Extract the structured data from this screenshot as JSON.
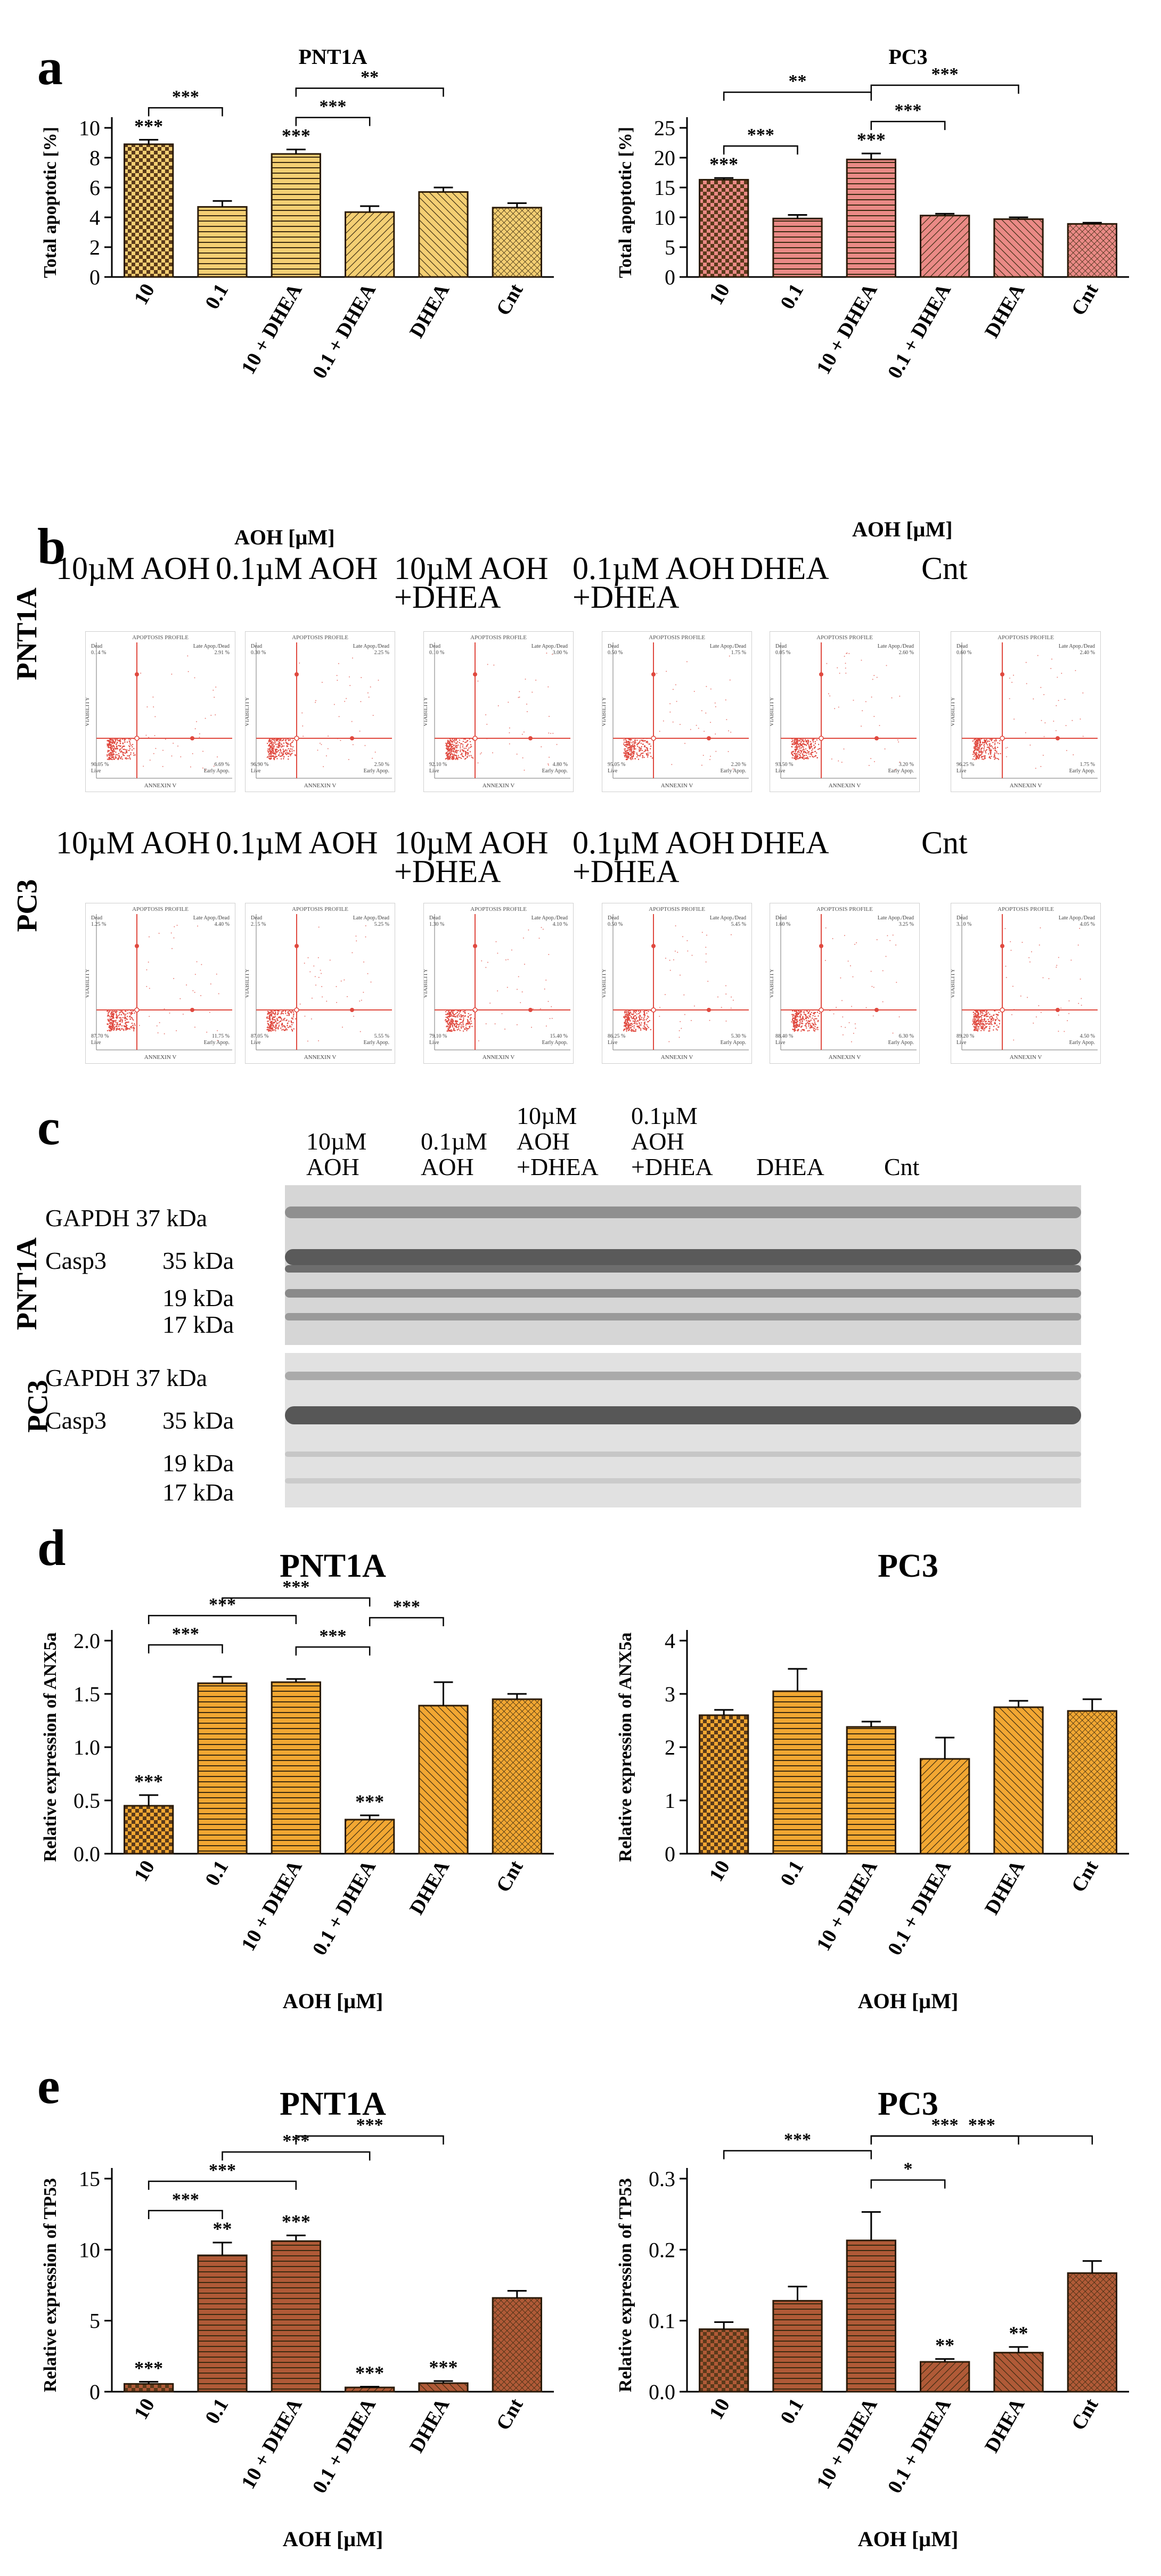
{
  "panel_letters": {
    "a": "a",
    "b": "b",
    "c": "c",
    "d": "d",
    "e": "e"
  },
  "colors": {
    "gold": "#f4cf73",
    "gold_dark": "#d9b24a",
    "salmon": "#ea8a86",
    "orange": "#f2a732",
    "brown": "#b05a37",
    "flow_red": "#e0493f"
  },
  "panel_b": {
    "left_header": "AOH [µM]",
    "right_header": "AOH [µM]",
    "row_labels": [
      "PNT1A",
      "PC3"
    ],
    "col_labels": [
      "10µM AOH",
      "0.1µM AOH",
      "10µM AOH\n+DHEA",
      "0.1µM AOH\n+DHEA",
      "DHEA",
      "Cnt"
    ],
    "profile_title": "APOPTOSIS PROFILE",
    "x_axis": "ANNEXIN V",
    "y_axis": "VIABILITY",
    "quadrant_names": {
      "dead": "Dead",
      "late": "Late Apop./Dead",
      "live": "Live",
      "early": "Early Apop."
    },
    "pnt1a": [
      {
        "dead": "0.14 %",
        "late": "2.91 %",
        "live": "90.05 %",
        "early": "6.69 %"
      },
      {
        "dead": "0.30 %",
        "late": "2.25 %",
        "live": "96.90 %",
        "early": "2.50 %"
      },
      {
        "dead": "0.10 %",
        "late": "3.00 %",
        "live": "92.10 %",
        "early": "4.80 %"
      },
      {
        "dead": "0.50 %",
        "late": "1.75 %",
        "live": "95.05 %",
        "early": "2.20 %"
      },
      {
        "dead": "0.05 %",
        "late": "2.60 %",
        "live": "93.50 %",
        "early": "3.20 %"
      },
      {
        "dead": "0.60 %",
        "late": "2.40 %",
        "live": "96.25 %",
        "early": "1.75 %"
      }
    ],
    "pc3": [
      {
        "dead": "1.25 %",
        "late": "4.40 %",
        "live": "87.70 %",
        "early": "11.75 %"
      },
      {
        "dead": "2.15 %",
        "late": "5.25 %",
        "live": "87.05 %",
        "early": "5.55 %"
      },
      {
        "dead": "1.30 %",
        "late": "4.10 %",
        "live": "79.10 %",
        "early": "15.40 %"
      },
      {
        "dead": "0.50 %",
        "late": "5.45 %",
        "live": "86.25 %",
        "early": "5.30 %"
      },
      {
        "dead": "1.60 %",
        "late": "3.25 %",
        "live": "88.40 %",
        "early": "6.30 %"
      },
      {
        "dead": "3.10 %",
        "late": "4.05 %",
        "live": "89.20 %",
        "early": "4.50 %"
      }
    ]
  },
  "panel_c": {
    "col_labels": [
      "10µM\nAOH",
      "0.1µM\nAOH",
      "10µM\nAOH\n+DHEA",
      "0.1µM\nAOH\n+DHEA",
      "DHEA",
      "Cnt"
    ],
    "row_labels": [
      "PNT1A",
      "PC3"
    ],
    "band_labels": {
      "gapdh": "GAPDH 37 kDa",
      "casp3": "Casp3",
      "casp3_kda": "35 kDa",
      "k19": "19 kDa",
      "k17": "17 kDa"
    }
  },
  "chart_data": [
    {
      "id": "a-pnt1a",
      "panel": "a",
      "type": "bar",
      "title": "PNT1A",
      "categories": [
        "10",
        "0.1",
        "10 + DHEA",
        "0.1 + DHEA",
        "DHEA",
        "Cnt"
      ],
      "values": [
        8.9,
        4.7,
        8.25,
        4.35,
        5.7,
        4.65
      ],
      "errors": [
        0.3,
        0.4,
        0.3,
        0.4,
        0.3,
        0.3
      ],
      "star_labels": [
        "***",
        "",
        "***",
        "",
        "",
        ""
      ],
      "ylabel": "Total apoptotic [%]",
      "xlabel": "",
      "ylim": [
        0,
        10
      ],
      "yticks": [
        0,
        2,
        4,
        6,
        8,
        10
      ],
      "brackets": [
        {
          "from": 0,
          "to": 1,
          "label": "***"
        },
        {
          "from": 2,
          "to": 3,
          "label": "***"
        },
        {
          "from": 2,
          "to": 4,
          "label": "**"
        }
      ],
      "palette": "gold"
    },
    {
      "id": "a-pc3",
      "panel": "a",
      "type": "bar",
      "title": "PC3",
      "categories": [
        "10",
        "0.1",
        "10 + DHEA",
        "0.1 + DHEA",
        "DHEA",
        "Cnt"
      ],
      "values": [
        16.3,
        9.8,
        19.7,
        10.3,
        9.7,
        8.9
      ],
      "errors": [
        0.3,
        0.6,
        1.0,
        0.3,
        0.3,
        0.2
      ],
      "star_labels": [
        "***",
        "",
        "***",
        "",
        "",
        ""
      ],
      "ylabel": "Total apoptotic [%]",
      "xlabel": "",
      "ylim": [
        0,
        25
      ],
      "yticks": [
        0,
        5,
        10,
        15,
        20,
        25
      ],
      "brackets": [
        {
          "from": 0,
          "to": 1,
          "label": "***"
        },
        {
          "from": 0,
          "to": 2,
          "label": "**"
        },
        {
          "from": 2,
          "to": 3,
          "label": "***"
        },
        {
          "from": 2,
          "to": 4,
          "label": "***"
        }
      ],
      "palette": "salmon"
    },
    {
      "id": "d-pnt1a",
      "panel": "d",
      "type": "bar",
      "title": "PNT1A",
      "categories": [
        "10",
        "0.1",
        "10 + DHEA",
        "0.1 + DHEA",
        "DHEA",
        "Cnt"
      ],
      "values": [
        0.45,
        1.6,
        1.61,
        0.32,
        1.39,
        1.45
      ],
      "errors": [
        0.1,
        0.06,
        0.03,
        0.04,
        0.22,
        0.05
      ],
      "star_labels": [
        "***",
        "",
        "",
        "***",
        "",
        ""
      ],
      "ylabel": "Relative expression of ANX5a",
      "xlabel": "AOH [µM]",
      "ylim": [
        0,
        2.0
      ],
      "yticks": [
        0.0,
        0.5,
        1.0,
        1.5,
        2.0
      ],
      "brackets": [
        {
          "from": 0,
          "to": 1,
          "label": "***"
        },
        {
          "from": 0,
          "to": 2,
          "label": "***"
        },
        {
          "from": 1,
          "to": 3,
          "label": "***"
        },
        {
          "from": 2,
          "to": 3,
          "label": "***"
        },
        {
          "from": 3,
          "to": 4,
          "label": "***"
        }
      ],
      "palette": "orange"
    },
    {
      "id": "d-pc3",
      "panel": "d",
      "type": "bar",
      "title": "PC3",
      "categories": [
        "10",
        "0.1",
        "10 + DHEA",
        "0.1 + DHEA",
        "DHEA",
        "Cnt"
      ],
      "values": [
        2.6,
        3.05,
        2.38,
        1.78,
        2.75,
        2.68
      ],
      "errors": [
        0.1,
        0.42,
        0.1,
        0.4,
        0.12,
        0.22
      ],
      "star_labels": [
        "",
        "",
        "",
        "",
        "",
        ""
      ],
      "ylabel": "Relative expression of ANX5a",
      "xlabel": "AOH [µM]",
      "ylim": [
        0,
        4
      ],
      "yticks": [
        0,
        1,
        2,
        3,
        4
      ],
      "brackets": [],
      "palette": "orange"
    },
    {
      "id": "e-pnt1a",
      "panel": "e",
      "type": "bar",
      "title": "PNT1A",
      "categories": [
        "10",
        "0.1",
        "10 + DHEA",
        "0.1 + DHEA",
        "DHEA",
        "Cnt"
      ],
      "values": [
        0.55,
        9.6,
        10.6,
        0.3,
        0.6,
        6.6
      ],
      "errors": [
        0.15,
        0.9,
        0.4,
        0.05,
        0.15,
        0.5
      ],
      "star_labels": [
        "***",
        "**",
        "***",
        "***",
        "***",
        ""
      ],
      "ylabel": "Relative expression of TP53",
      "xlabel": "AOH [µM]",
      "ylim": [
        0,
        15
      ],
      "yticks": [
        0,
        5,
        10,
        15
      ],
      "brackets": [
        {
          "from": 0,
          "to": 1,
          "label": "***"
        },
        {
          "from": 0,
          "to": 2,
          "label": "***"
        },
        {
          "from": 1,
          "to": 3,
          "label": "***"
        },
        {
          "from": 2,
          "to": 4,
          "label": "***"
        }
      ],
      "palette": "brown"
    },
    {
      "id": "e-pc3",
      "panel": "e",
      "type": "bar",
      "title": "PC3",
      "categories": [
        "10",
        "0.1",
        "10 + DHEA",
        "0.1 + DHEA",
        "DHEA",
        "Cnt"
      ],
      "values": [
        0.088,
        0.128,
        0.213,
        0.042,
        0.055,
        0.167
      ],
      "errors": [
        0.01,
        0.02,
        0.04,
        0.004,
        0.008,
        0.017
      ],
      "star_labels": [
        "",
        "",
        "",
        "**",
        "**",
        ""
      ],
      "ylabel": "Relative expression of TP53",
      "xlabel": "AOH [µM]",
      "ylim": [
        0,
        0.3
      ],
      "yticks": [
        0.0,
        0.1,
        0.2,
        0.3
      ],
      "brackets": [
        {
          "from": 0,
          "to": 2,
          "label": "***"
        },
        {
          "from": 2,
          "to": 3,
          "label": "*"
        },
        {
          "from": 2,
          "to": 4,
          "label": "***"
        },
        {
          "from": 2,
          "to": 5,
          "label": "***"
        }
      ],
      "palette": "brown"
    }
  ]
}
